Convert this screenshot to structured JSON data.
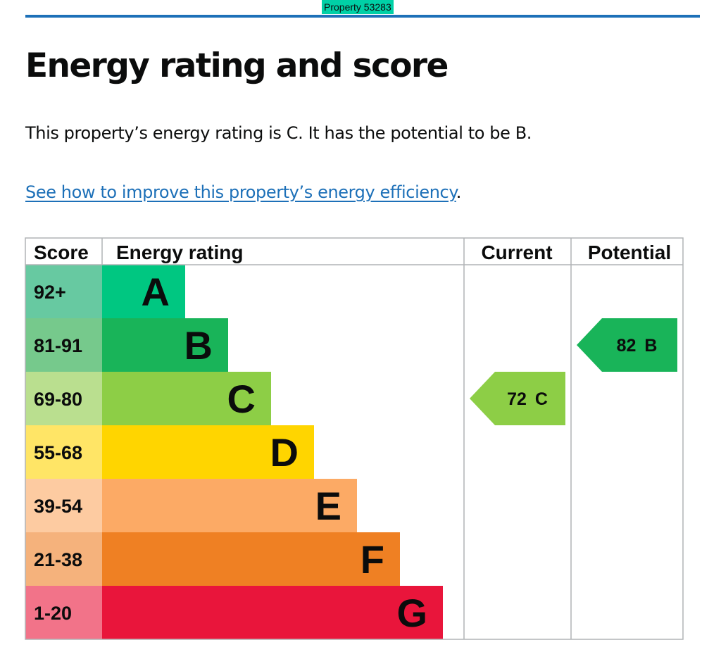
{
  "property_tag": "Property 53283",
  "heading": "Energy rating and score",
  "intro": "This property’s energy rating is C. It has the potential to be B.",
  "improve_link": "See how to improve this property’s energy efficiency",
  "improve_suffix": ".",
  "colors": {
    "accent_rule": "#1d70b8",
    "link": "#1d70b8",
    "tag": "#00d0a6"
  },
  "chart_data": {
    "type": "bar",
    "headers": {
      "score": "Score",
      "rating": "Energy rating",
      "current": "Current",
      "potential": "Potential"
    },
    "bands": [
      {
        "letter": "A",
        "range": "92+",
        "color": "#00c781",
        "score_bg": "#67c9a1"
      },
      {
        "letter": "B",
        "range": "81-91",
        "color": "#19b459",
        "score_bg": "#76c98c"
      },
      {
        "letter": "C",
        "range": "69-80",
        "color": "#8dce46",
        "score_bg": "#badf8f"
      },
      {
        "letter": "D",
        "range": "55-68",
        "color": "#ffd500",
        "score_bg": "#ffe566"
      },
      {
        "letter": "E",
        "range": "39-54",
        "color": "#fcaa65",
        "score_bg": "#fdcba1"
      },
      {
        "letter": "F",
        "range": "21-38",
        "color": "#ef8023",
        "score_bg": "#f5b27c"
      },
      {
        "letter": "G",
        "range": "1-20",
        "color": "#e9153b",
        "score_bg": "#f27389"
      }
    ],
    "current": {
      "score": "72",
      "letter": "C"
    },
    "potential": {
      "score": "82",
      "letter": "B"
    }
  }
}
